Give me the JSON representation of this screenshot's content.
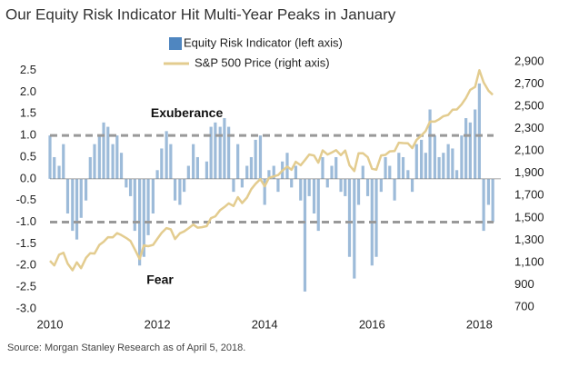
{
  "chart_data": {
    "type": "bar",
    "title": "Our Equity Risk Indicator Hit Multi-Year Peaks in January",
    "source": "Source: Morgan Stanley Research as of April 5, 2018.",
    "x": [
      2010.0,
      2010.08,
      2010.17,
      2010.25,
      2010.33,
      2010.42,
      2010.5,
      2010.58,
      2010.67,
      2010.75,
      2010.83,
      2010.92,
      2011.0,
      2011.08,
      2011.17,
      2011.25,
      2011.33,
      2011.42,
      2011.5,
      2011.58,
      2011.67,
      2011.75,
      2011.83,
      2011.92,
      2012.0,
      2012.08,
      2012.17,
      2012.25,
      2012.33,
      2012.42,
      2012.5,
      2012.58,
      2012.67,
      2012.75,
      2012.83,
      2012.92,
      2013.0,
      2013.08,
      2013.17,
      2013.25,
      2013.33,
      2013.42,
      2013.5,
      2013.58,
      2013.67,
      2013.75,
      2013.83,
      2013.92,
      2014.0,
      2014.08,
      2014.17,
      2014.25,
      2014.33,
      2014.42,
      2014.5,
      2014.58,
      2014.67,
      2014.75,
      2014.83,
      2014.92,
      2015.0,
      2015.08,
      2015.17,
      2015.25,
      2015.33,
      2015.42,
      2015.5,
      2015.58,
      2015.67,
      2015.75,
      2015.83,
      2015.92,
      2016.0,
      2016.08,
      2016.17,
      2016.25,
      2016.33,
      2016.42,
      2016.5,
      2016.58,
      2016.67,
      2016.75,
      2016.83,
      2016.92,
      2017.0,
      2017.08,
      2017.17,
      2017.25,
      2017.33,
      2017.42,
      2017.5,
      2017.58,
      2017.67,
      2017.75,
      2017.83,
      2017.92,
      2018.0,
      2018.08,
      2018.17,
      2018.25
    ],
    "series": [
      {
        "name": "Equity Risk Indicator (left axis)",
        "color": "#9dbbd9",
        "type": "bar",
        "values": [
          1.0,
          0.5,
          0.3,
          0.8,
          -0.8,
          -1.2,
          -1.4,
          -0.9,
          -0.5,
          0.5,
          0.8,
          1.0,
          1.3,
          1.2,
          0.8,
          1.0,
          0.6,
          -0.2,
          -0.4,
          -1.2,
          -2.0,
          -1.8,
          -1.3,
          -0.8,
          0.2,
          0.7,
          1.1,
          0.8,
          -0.5,
          -0.6,
          -0.3,
          0.3,
          0.8,
          0.5,
          0.0,
          0.4,
          1.2,
          1.3,
          1.2,
          1.4,
          1.2,
          -0.3,
          0.8,
          -0.2,
          0.3,
          0.5,
          0.9,
          1.0,
          -0.6,
          0.2,
          0.3,
          -0.3,
          0.4,
          0.6,
          -0.2,
          0.3,
          -0.5,
          -2.6,
          -0.4,
          -0.8,
          -1.2,
          0.5,
          -0.2,
          0.3,
          0.5,
          -0.3,
          -0.4,
          -1.8,
          -2.3,
          -0.6,
          0.3,
          -0.4,
          -2.0,
          -1.8,
          -0.3,
          0.5,
          0.3,
          -0.5,
          0.6,
          0.5,
          0.2,
          -0.3,
          0.8,
          0.9,
          0.6,
          1.6,
          1.0,
          0.5,
          0.6,
          0.8,
          0.7,
          0.2,
          1.0,
          1.4,
          1.3,
          1.6,
          2.2,
          -1.2,
          -0.6,
          -1.0
        ]
      },
      {
        "name": "S&P 500 Price (right axis)",
        "color": "#e3cc8f",
        "type": "line",
        "axis": "y2",
        "values": [
          1115,
          1073,
          1169,
          1187,
          1089,
          1030,
          1101,
          1049,
          1141,
          1183,
          1180,
          1257,
          1286,
          1327,
          1325,
          1363,
          1345,
          1320,
          1292,
          1218,
          1131,
          1253,
          1246,
          1257,
          1312,
          1365,
          1408,
          1397,
          1310,
          1362,
          1379,
          1406,
          1440,
          1412,
          1416,
          1426,
          1498,
          1514,
          1569,
          1597,
          1630,
          1606,
          1686,
          1633,
          1682,
          1757,
          1806,
          1848,
          1783,
          1859,
          1872,
          1884,
          1924,
          1960,
          1931,
          2003,
          1972,
          2018,
          2068,
          2059,
          1995,
          2105,
          2068,
          2086,
          2107,
          2063,
          2104,
          1972,
          1920,
          2079,
          2080,
          2044,
          1940,
          1932,
          2060,
          2065,
          2097,
          2099,
          2174,
          2171,
          2168,
          2126,
          2199,
          2239,
          2279,
          2364,
          2363,
          2384,
          2412,
          2423,
          2470,
          2472,
          2519,
          2575,
          2648,
          2674,
          2824,
          2714,
          2641,
          2604
        ]
      }
    ],
    "xlim": [
      2010,
      2018.4
    ],
    "xticks": [
      2010,
      2012,
      2014,
      2016,
      2018
    ],
    "ylim": [
      -3.0,
      2.7
    ],
    "yticks": [
      2.5,
      {
        "value": 2,
        "label": "2.0"
      },
      1.5,
      {
        "value": 1,
        "label": "1.0"
      },
      0.5,
      {
        "value": 0,
        "label": "0.0"
      },
      -0.5,
      {
        "value": -1,
        "label": "-1.0"
      },
      -1.5,
      {
        "value": -2,
        "label": "-2.0"
      },
      -2.5,
      {
        "value": -3,
        "label": "-3.0"
      }
    ],
    "y2lim": [
      700,
      2900
    ],
    "y2ticks": [
      {
        "value": 2900,
        "label": "2,900"
      },
      {
        "value": 2700,
        "label": "2,700"
      },
      {
        "value": 2500,
        "label": "2,500"
      },
      {
        "value": 2300,
        "label": "2,300"
      },
      {
        "value": 2100,
        "label": "2,100"
      },
      {
        "value": 1900,
        "label": "1,900"
      },
      {
        "value": 1700,
        "label": "1,700"
      },
      {
        "value": 1500,
        "label": "1,500"
      },
      {
        "value": 1300,
        "label": "1,300"
      },
      {
        "value": 1100,
        "label": "1,100"
      },
      {
        "value": 900,
        "label": "900"
      },
      {
        "value": 700,
        "label": "700"
      }
    ],
    "threshold_lines": [
      1.0,
      -1.0
    ],
    "annotations": [
      {
        "text": "Exuberance",
        "x": 2012.55,
        "y": 1.5
      },
      {
        "text": "Fear",
        "x": 2012.05,
        "y": -2.35
      }
    ],
    "legend": "top"
  }
}
